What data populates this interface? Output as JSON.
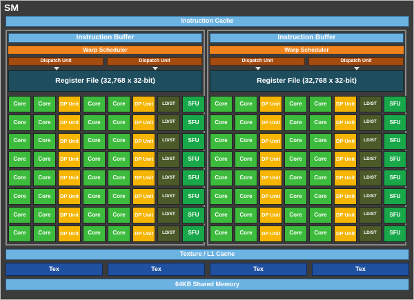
{
  "title": "SM",
  "instruction_cache": "Instruction Cache",
  "panels": [
    {
      "instruction_buffer": "Instruction Buffer",
      "warp_scheduler": "Warp Scheduler",
      "dispatch_units": [
        "Dispatch Unit",
        "Dispatch Unit"
      ],
      "register_file": "Register File (32,768 x 32-bit)"
    },
    {
      "instruction_buffer": "Instruction Buffer",
      "warp_scheduler": "Warp Scheduler",
      "dispatch_units": [
        "Dispatch Unit",
        "Dispatch Unit"
      ],
      "register_file": "Register File (32,768 x 32-bit)"
    }
  ],
  "unit_row": [
    {
      "type": "core",
      "label": "Core"
    },
    {
      "type": "core",
      "label": "Core"
    },
    {
      "type": "dp",
      "label": "DP Unit"
    },
    {
      "type": "core",
      "label": "Core"
    },
    {
      "type": "core",
      "label": "Core"
    },
    {
      "type": "dp",
      "label": "DP Unit"
    },
    {
      "type": "ldst",
      "label": "LD/ST"
    },
    {
      "type": "sfu",
      "label": "SFU"
    }
  ],
  "rows_per_panel": 8,
  "texture_l1_cache": "Texture / L1 Cache",
  "tex_units": [
    "Tex",
    "Tex",
    "Tex",
    "Tex"
  ],
  "shared_memory": "64KB Shared Memory",
  "colors": {
    "core": "#3cbb3c",
    "dp": "#f6b500",
    "ldst": "#4b5a28",
    "sfu": "#18a84a",
    "warp": "#f0821c",
    "dispatch": "#a64b0e",
    "register": "#1e4d5e",
    "cache": "#6cb3e2",
    "tex": "#2050a0"
  }
}
